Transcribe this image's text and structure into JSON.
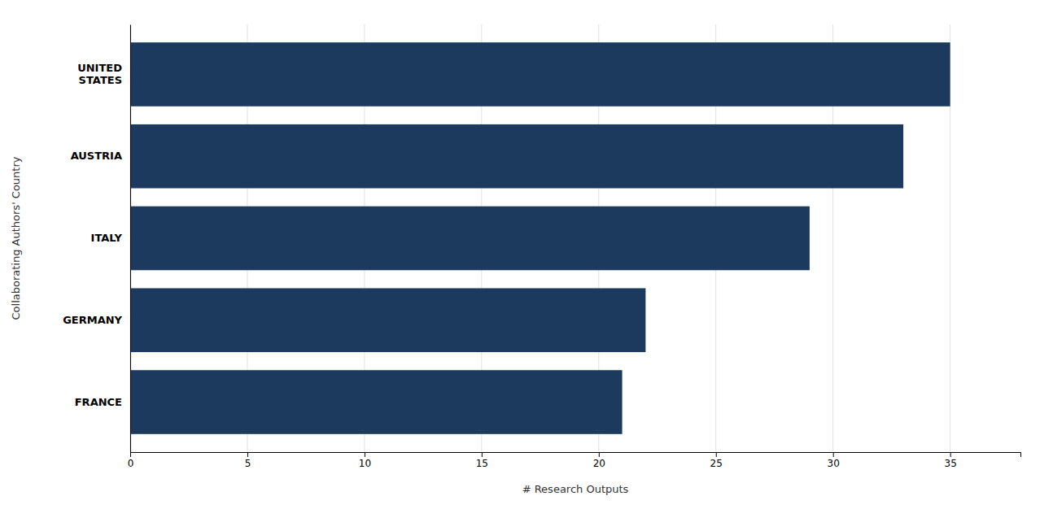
{
  "chart_data": {
    "type": "bar",
    "orientation": "horizontal",
    "categories": [
      "FRANCE",
      "GERMANY",
      "ITALY",
      "AUSTRIA",
      "UNITED\nSTATES"
    ],
    "values": [
      21,
      22,
      29,
      33,
      35
    ],
    "color": "#1b3a5e",
    "xlabel": "# Research Outputs",
    "ylabel": "Collaborating Authors' Country",
    "xlim": [
      0,
      38
    ],
    "xticks": [
      0,
      5,
      10,
      15,
      20,
      25,
      30,
      35
    ],
    "grid": true
  }
}
